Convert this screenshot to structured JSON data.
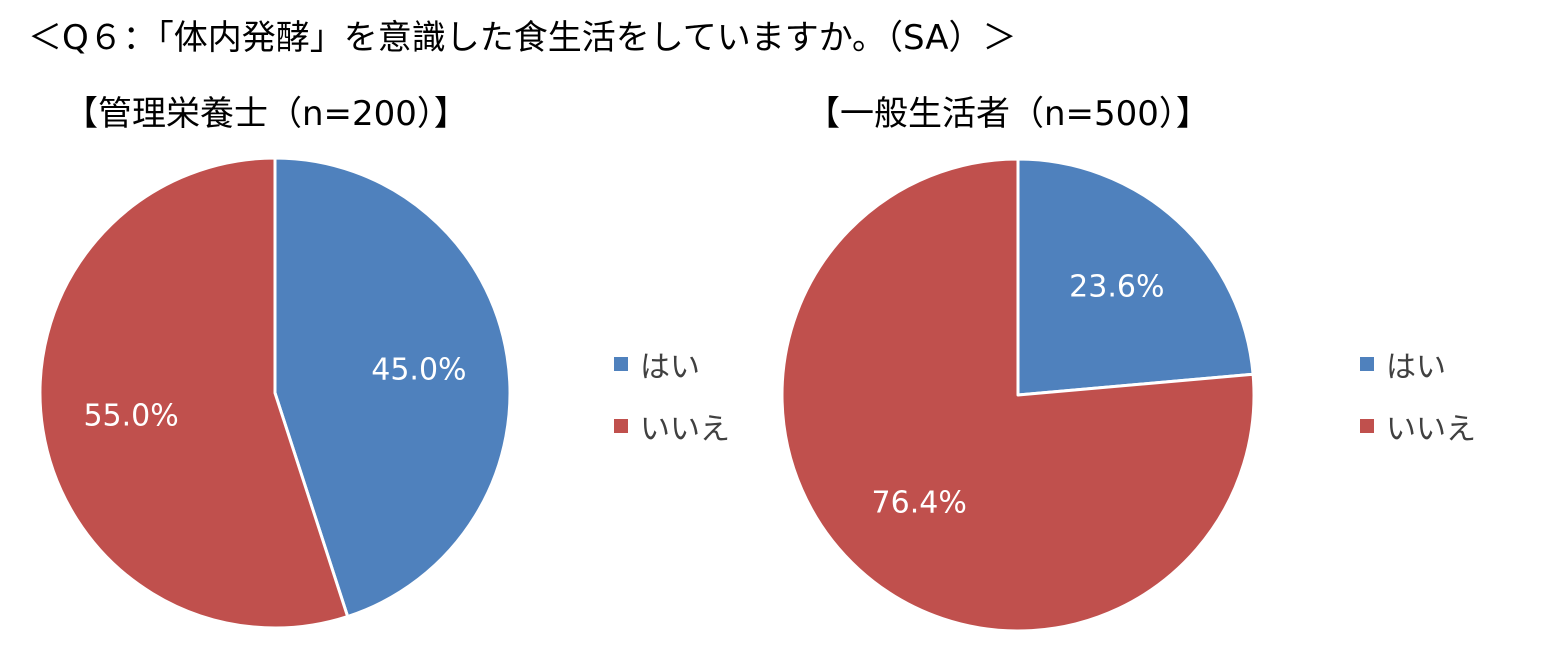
{
  "page_title": "＜Q６：「体内発酵」を意識した食生活をしていますか。（SA）＞",
  "chart_data": [
    {
      "type": "pie",
      "title": "【管理栄養士（n=200）】",
      "categories": [
        "はい",
        "いいえ"
      ],
      "values": [
        45.0,
        55.0
      ],
      "labels": [
        "45.0%",
        "55.0%"
      ],
      "colors": [
        "#4f81bd",
        "#c0504d"
      ],
      "legend_position": "right"
    },
    {
      "type": "pie",
      "title": "【一般生活者（n=500）】",
      "categories": [
        "はい",
        "いいえ"
      ],
      "values": [
        23.6,
        76.4
      ],
      "labels": [
        "23.6%",
        "76.4%"
      ],
      "colors": [
        "#4f81bd",
        "#c0504d"
      ],
      "legend_position": "right"
    }
  ]
}
